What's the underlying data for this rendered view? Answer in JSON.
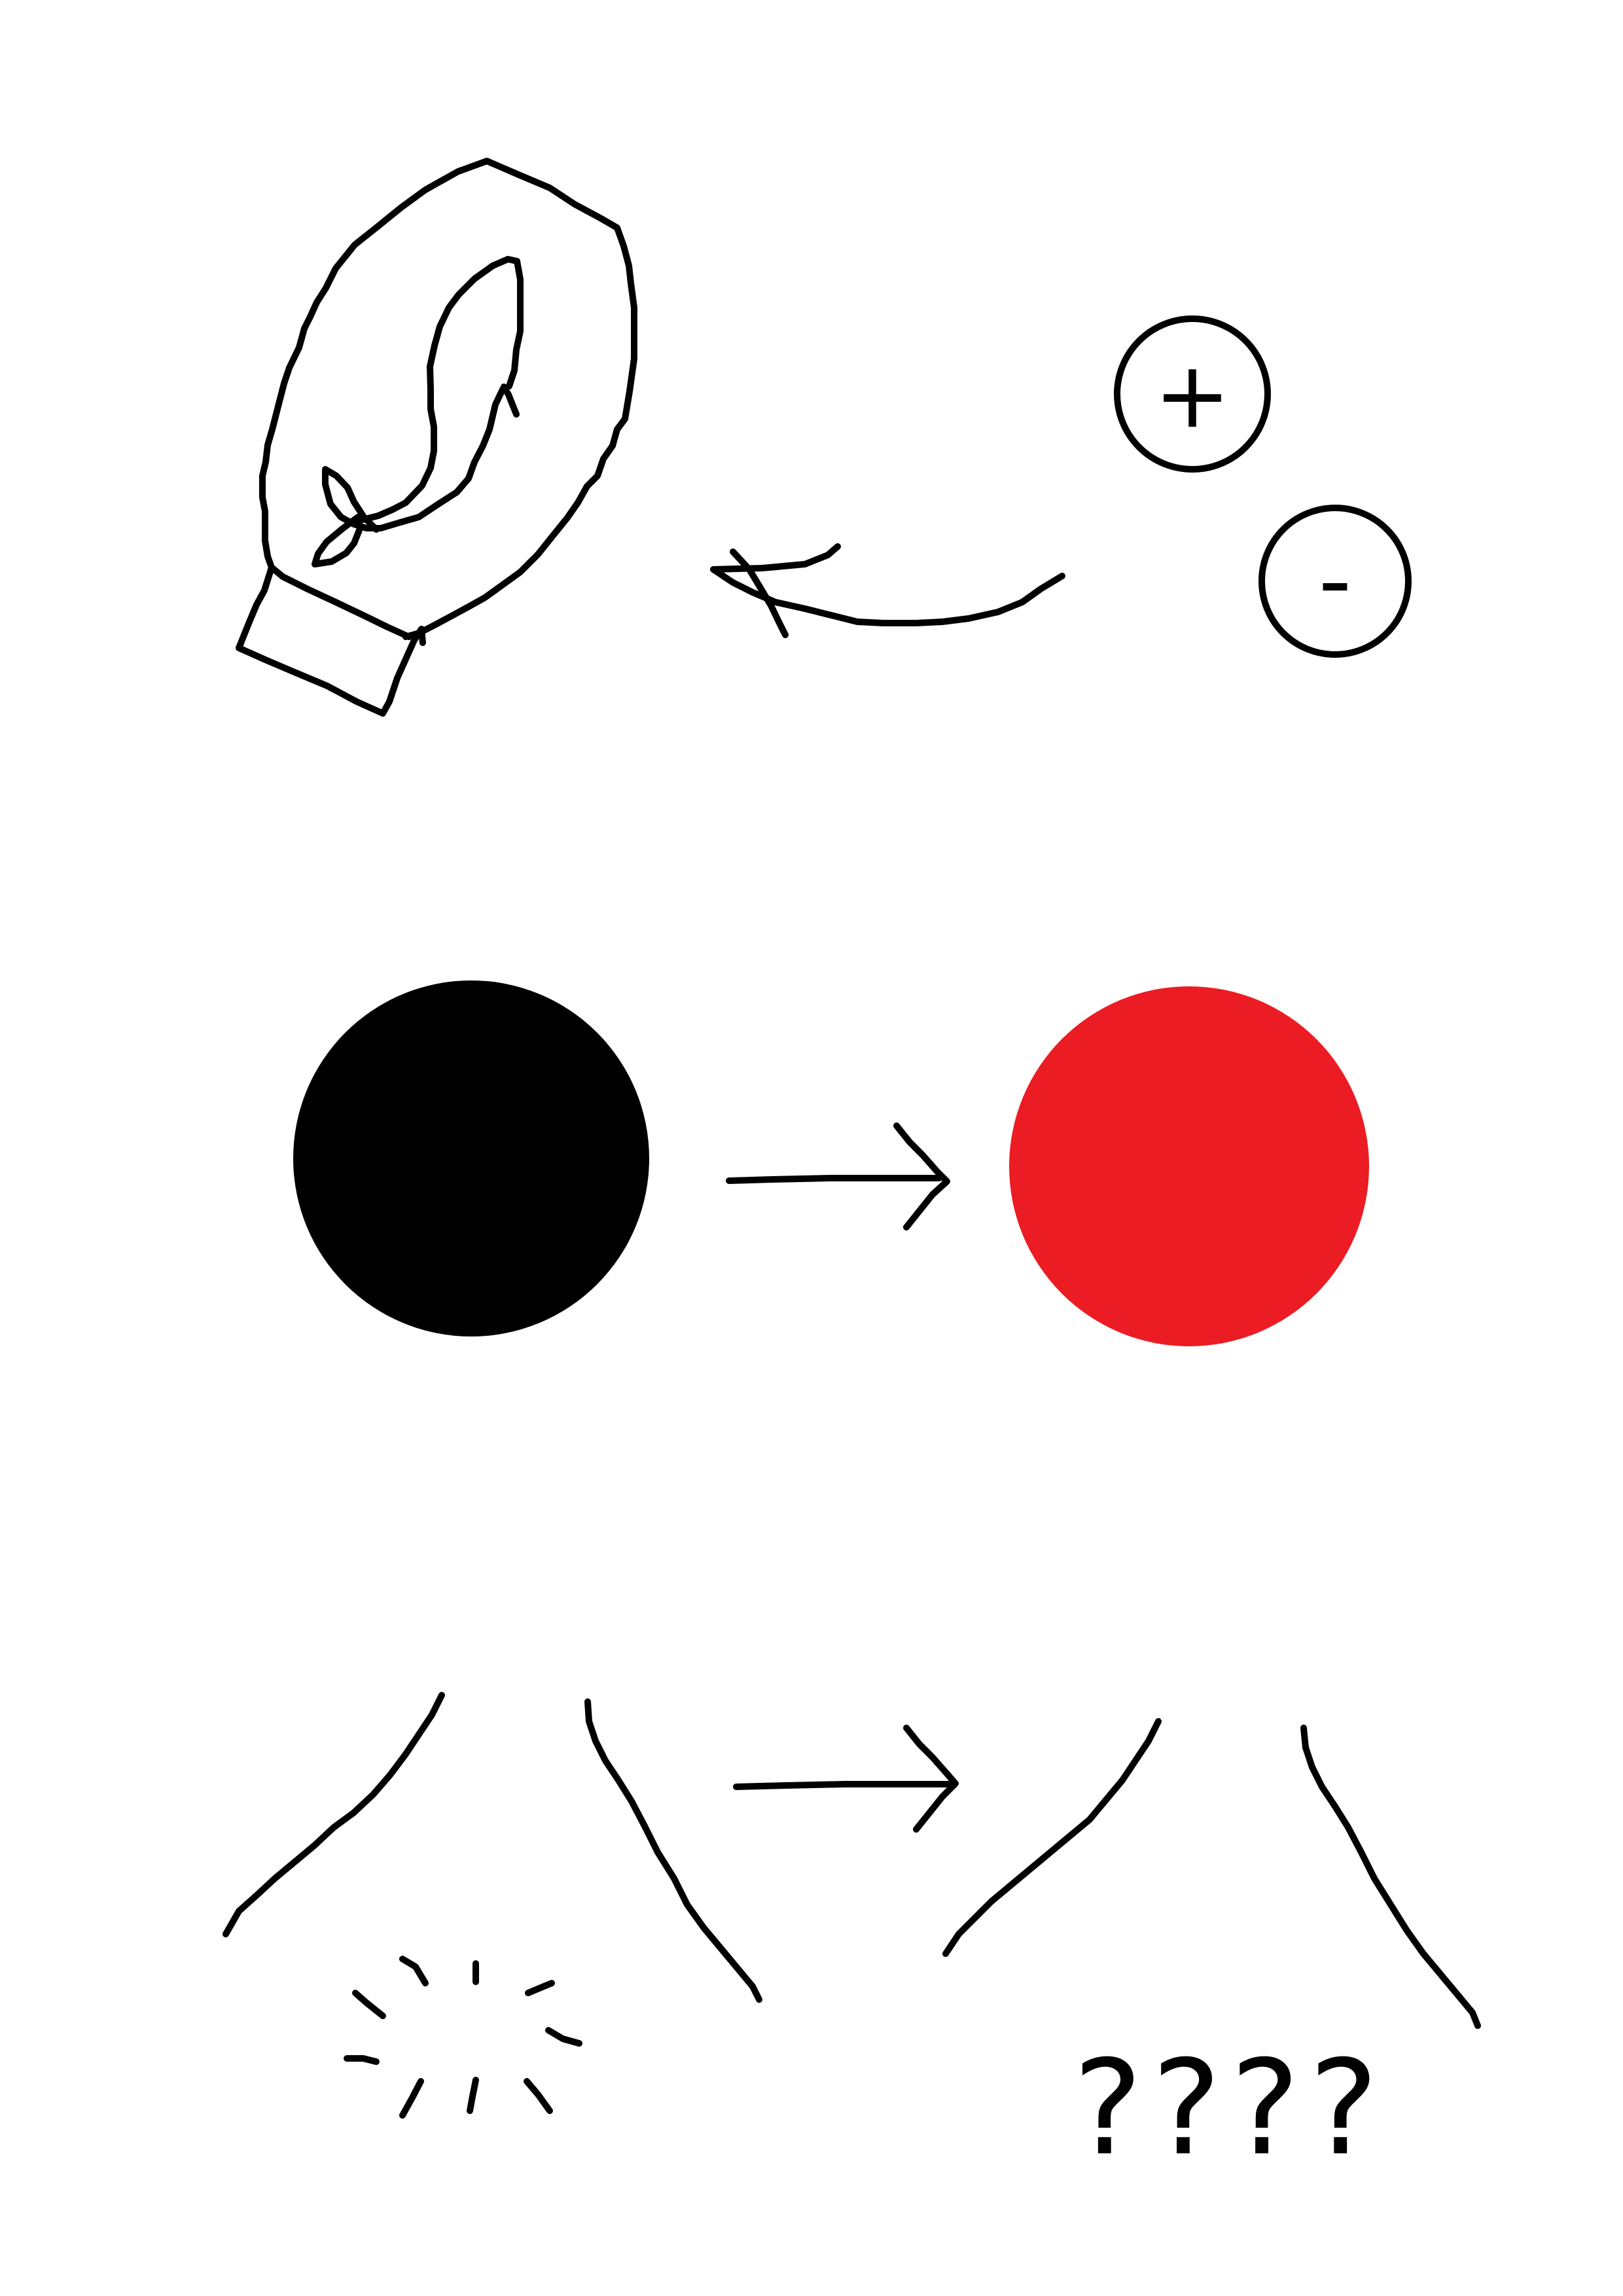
{
  "colors": {
    "ink": "#000000",
    "background": "#ffffff",
    "dark_ball": "#000000",
    "red_ball": "#ec1c24"
  },
  "section_1": {
    "mitten_icon": "mitten-icon",
    "positive_charge": "+",
    "negative_charge": "-"
  },
  "section_2": {
    "dark_circle_icon": "black-circle",
    "red_circle_icon": "red-circle"
  },
  "section_3": {
    "sparkle_icon": "sparkle-burst-icon",
    "question_marks": "????"
  }
}
